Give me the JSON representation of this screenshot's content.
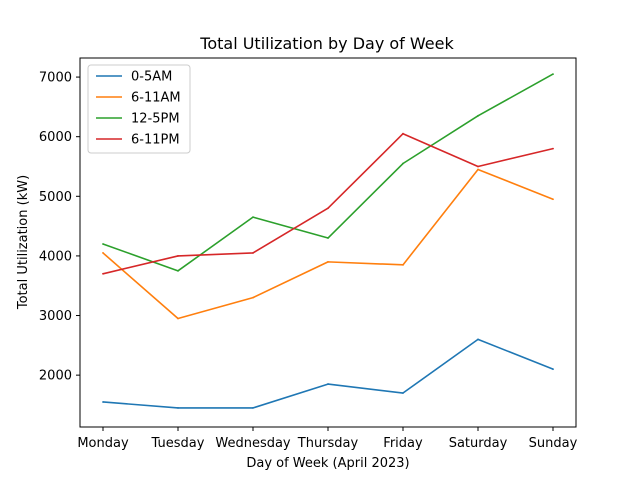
{
  "chart_data": {
    "type": "line",
    "title": "Total Utilization by Day of Week",
    "xlabel": "Day of Week (April 2023)",
    "ylabel": "Total Utilization (kW)",
    "categories": [
      "Monday",
      "Tuesday",
      "Wednesday",
      "Thursday",
      "Friday",
      "Saturday",
      "Sunday"
    ],
    "ylim": [
      1130,
      7320
    ],
    "yticks": [
      2000,
      3000,
      4000,
      5000,
      6000,
      7000
    ],
    "grid": false,
    "legend_position": "top-left",
    "series": [
      {
        "name": "0-5AM",
        "color": "#1f77b4",
        "values": [
          1550,
          1450,
          1450,
          1850,
          1700,
          2600,
          2100
        ]
      },
      {
        "name": "6-11AM",
        "color": "#ff7f0e",
        "values": [
          4050,
          2950,
          3300,
          3900,
          3850,
          5450,
          4950
        ]
      },
      {
        "name": "12-5PM",
        "color": "#2ca02c",
        "values": [
          4200,
          3750,
          4650,
          4300,
          5550,
          6350,
          7050
        ]
      },
      {
        "name": "6-11PM",
        "color": "#d62728",
        "values": [
          3700,
          4000,
          4050,
          4800,
          6050,
          5500,
          5800
        ]
      }
    ]
  }
}
